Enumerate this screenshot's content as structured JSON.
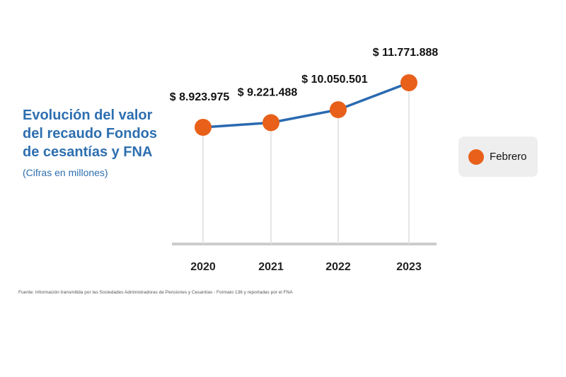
{
  "title_lines": [
    "Evolución del valor",
    "del recaudo Fondos",
    "de cesantías y FNA"
  ],
  "subtitle": "(Cifras en millones)",
  "legend": {
    "label": "Febrero"
  },
  "source": "Fuente: Información transmitida por las Sociedades Administradoras de Pensiones y Cesantías - Formato 136 y reportadas por el FNA",
  "colors": {
    "line": "#2a6ab0",
    "marker": "#e8601a",
    "title": "#2e6fb0",
    "axis": "#cccccc",
    "drop": "#dddddd"
  },
  "chart_data": {
    "type": "line",
    "categories": [
      "2020",
      "2021",
      "2022",
      "2023"
    ],
    "series": [
      {
        "name": "Febrero",
        "values": [
          8923975,
          9221488,
          10050501,
          11771888
        ]
      }
    ],
    "data_labels": [
      "$ 8.923.975",
      "$ 9.221.488",
      "$ 10.050.501",
      "$ 11.771.888"
    ],
    "title": "Evolución del valor del recaudo Fondos de cesantías y FNA",
    "ylabel": "Cifras en millones",
    "xlabel": ""
  }
}
